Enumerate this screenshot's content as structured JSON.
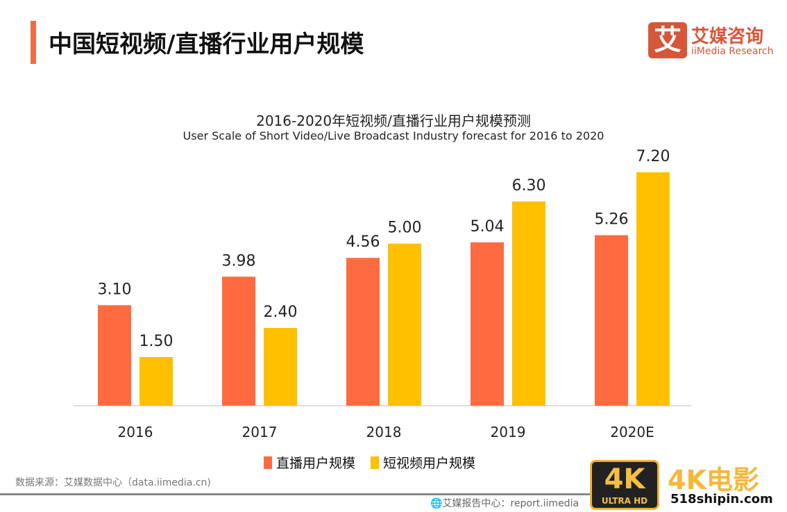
{
  "header": {
    "title": "中国短视频/直播行业用户规模",
    "logo_mark": "艾",
    "logo_cn": "艾媒咨询",
    "logo_en": "iiMedia Research"
  },
  "chart_data": {
    "type": "bar",
    "title": "2016-2020年短视频/直播行业用户规模预测",
    "subtitle": "User Scale of Short Video/Live Broadcast Industry  forecast for 2016 to 2020",
    "categories": [
      "2016",
      "2017",
      "2018",
      "2019",
      "2020E"
    ],
    "series": [
      {
        "name": "直播用户规模",
        "color": "#ff6b40",
        "values": [
          3.1,
          3.98,
          4.56,
          5.04,
          5.26
        ]
      },
      {
        "name": "短视频用户规模",
        "color": "#ffc000",
        "values": [
          1.5,
          2.4,
          5.0,
          6.3,
          7.2
        ]
      }
    ],
    "ylim": [
      0,
      7.2
    ],
    "grid": false,
    "legend": "bottom"
  },
  "footer": {
    "source": "数据来源：艾媒数据中心（data.iimedia.cn)",
    "report": "艾媒报告中心：report.iimedia"
  },
  "watermark": {
    "badge": "4K",
    "badge_sub": "ULTRA HD",
    "brand": "4K电影",
    "site": "518shipin.com"
  }
}
